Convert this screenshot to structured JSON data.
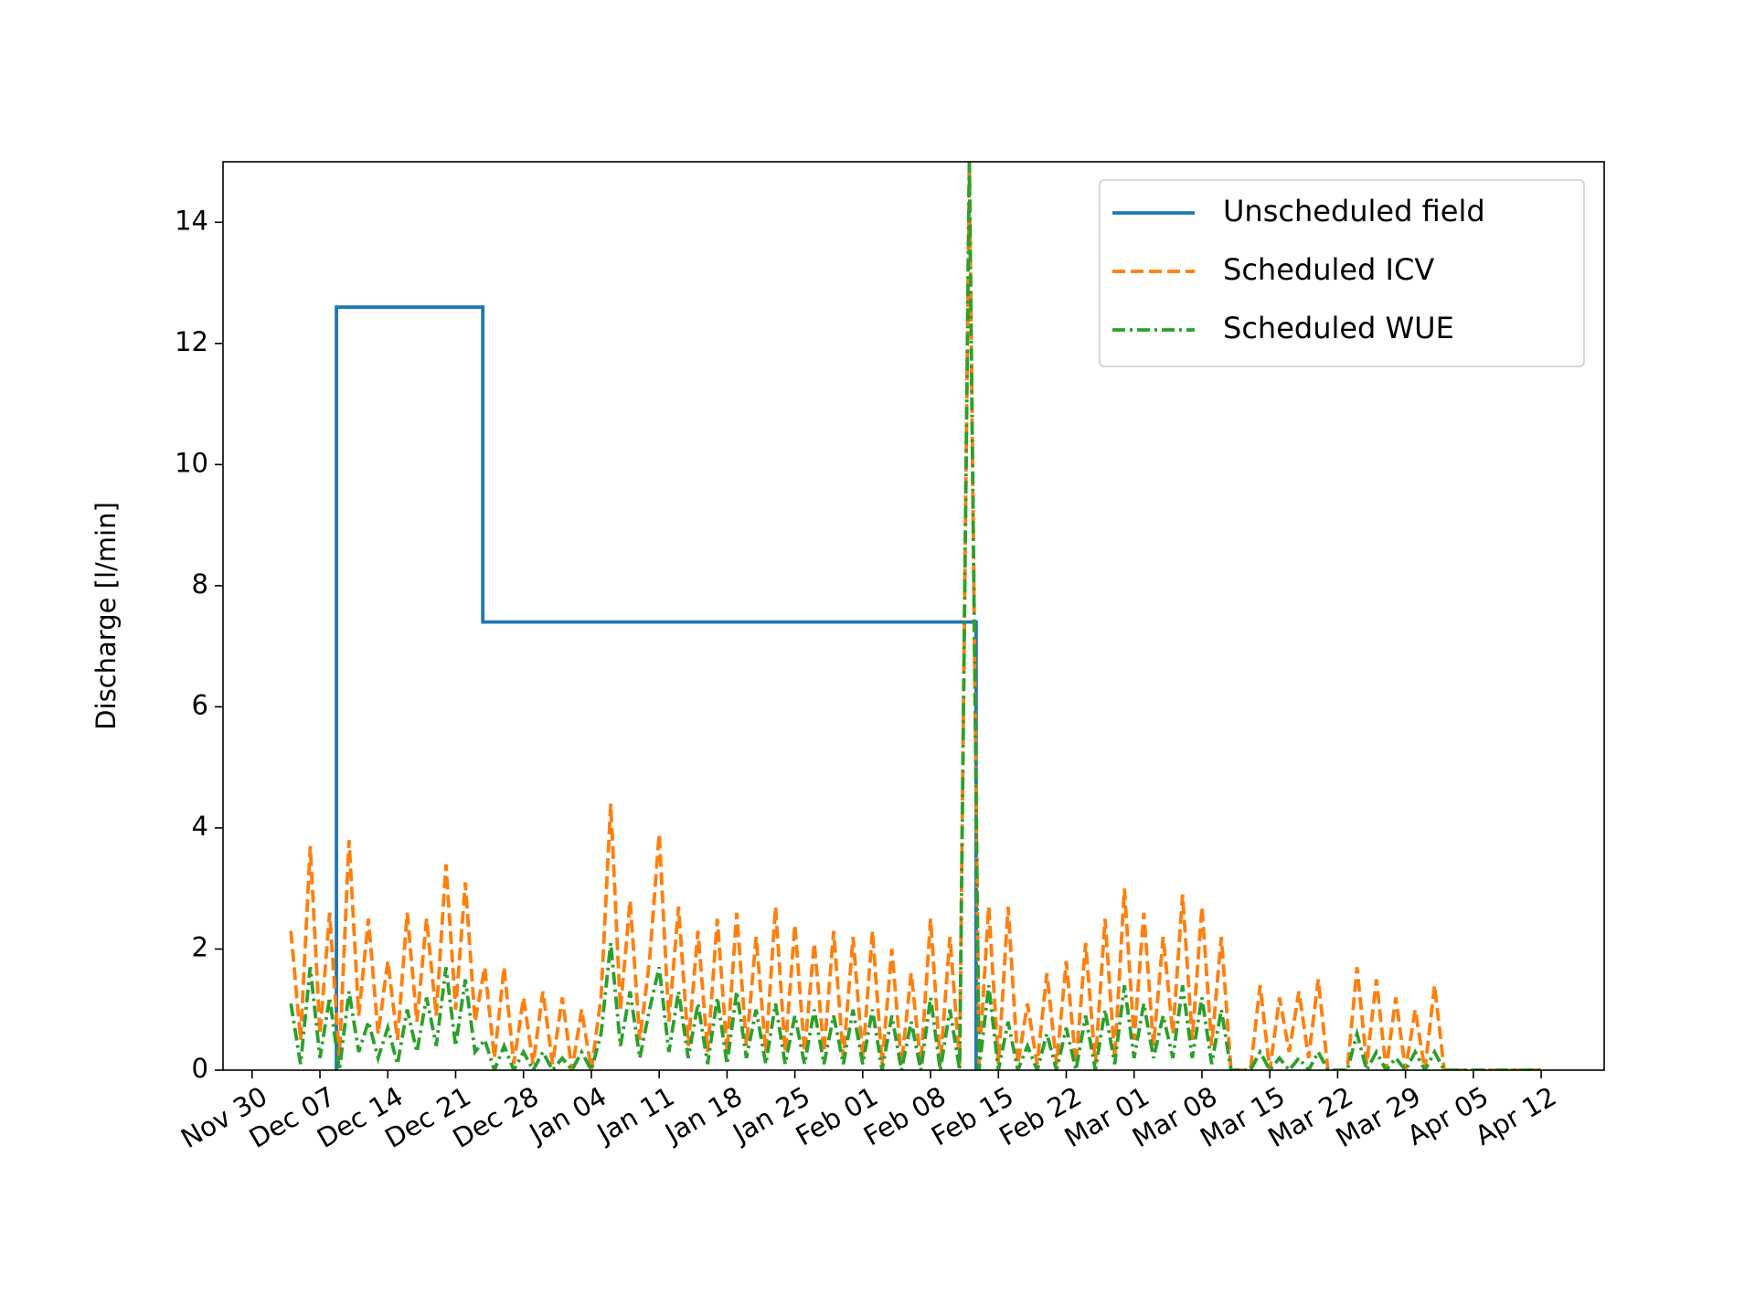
{
  "chart_data": {
    "type": "line",
    "y_label": "Discharge [l/min]",
    "xlim": [
      -3,
      139.5
    ],
    "ylim": [
      0,
      15
    ],
    "xticks": [
      {
        "value": 0,
        "label": "Nov 30"
      },
      {
        "value": 7,
        "label": "Dec 07"
      },
      {
        "value": 14,
        "label": "Dec 14"
      },
      {
        "value": 21,
        "label": "Dec 21"
      },
      {
        "value": 28,
        "label": "Dec 28"
      },
      {
        "value": 35,
        "label": "Jan 04"
      },
      {
        "value": 42,
        "label": "Jan 11"
      },
      {
        "value": 49,
        "label": "Jan 18"
      },
      {
        "value": 56,
        "label": "Jan 25"
      },
      {
        "value": 63,
        "label": "Feb 01"
      },
      {
        "value": 70,
        "label": "Feb 08"
      },
      {
        "value": 77,
        "label": "Feb 15"
      },
      {
        "value": 84,
        "label": "Feb 22"
      },
      {
        "value": 91,
        "label": "Mar 01"
      },
      {
        "value": 98,
        "label": "Mar 08"
      },
      {
        "value": 105,
        "label": "Mar 15"
      },
      {
        "value": 112,
        "label": "Mar 22"
      },
      {
        "value": 119,
        "label": "Mar 29"
      },
      {
        "value": 126,
        "label": "Apr 05"
      },
      {
        "value": 133,
        "label": "Apr 12"
      }
    ],
    "yticks": [
      0,
      2,
      4,
      6,
      8,
      10,
      12,
      14
    ],
    "legend": "upper right",
    "series": [
      {
        "name": "Unscheduled field",
        "color": "#1f77b4",
        "style": "solid",
        "x": [
          8.7,
          8.7,
          23.8,
          23.8,
          74.7,
          74.7
        ],
        "values": [
          0,
          12.6,
          12.6,
          7.4,
          7.4,
          0
        ]
      },
      {
        "name": "Scheduled ICV",
        "color": "#ff7f0e",
        "style": "dashed",
        "x": [
          4,
          5,
          6,
          7,
          8,
          9,
          10,
          11,
          12,
          13,
          14,
          15,
          16,
          17,
          18,
          19,
          20,
          21,
          22,
          23,
          24,
          25,
          26,
          27,
          28,
          29,
          30,
          31,
          32,
          33,
          34,
          35,
          36,
          37,
          38,
          39,
          40,
          41,
          42,
          43,
          44,
          45,
          46,
          47,
          48,
          49,
          50,
          51,
          52,
          53,
          54,
          55,
          56,
          57,
          58,
          59,
          60,
          61,
          62,
          63,
          64,
          65,
          66,
          67,
          68,
          69,
          70,
          71,
          72,
          73,
          74,
          75,
          76,
          77,
          78,
          79,
          80,
          81,
          82,
          83,
          84,
          85,
          86,
          87,
          88,
          89,
          90,
          91,
          92,
          93,
          94,
          95,
          96,
          97,
          98,
          99,
          100,
          101,
          102,
          103,
          104,
          105,
          106,
          107,
          108,
          109,
          110,
          111,
          112,
          113,
          114,
          115,
          116,
          117,
          118,
          119,
          120,
          121,
          122,
          123,
          124,
          125,
          126,
          127,
          128,
          129,
          130,
          131,
          132,
          133
        ],
        "values": [
          2.3,
          0.5,
          3.7,
          0.6,
          2.6,
          0.2,
          3.8,
          0.9,
          2.5,
          0.6,
          1.8,
          0.5,
          2.6,
          0.8,
          2.5,
          0.9,
          3.4,
          1.0,
          3.1,
          0.8,
          1.7,
          0.2,
          1.7,
          0.1,
          1.2,
          0.1,
          1.3,
          0.1,
          1.2,
          0.0,
          1.0,
          0.0,
          1.2,
          4.4,
          1.0,
          2.8,
          0.5,
          1.8,
          3.9,
          0.8,
          2.7,
          0.4,
          2.3,
          0.3,
          2.5,
          0.3,
          2.6,
          0.4,
          2.2,
          0.3,
          2.7,
          0.3,
          2.4,
          0.3,
          2.1,
          0.3,
          2.3,
          0.2,
          2.2,
          0.2,
          2.3,
          0.1,
          2.0,
          0.1,
          1.6,
          0.1,
          2.5,
          0.1,
          2.2,
          0.1,
          15.0,
          0.1,
          2.7,
          0.1,
          2.7,
          0.1,
          1.1,
          0.1,
          1.6,
          0.1,
          1.8,
          0.1,
          2.1,
          0.1,
          2.5,
          0.2,
          3.0,
          0.5,
          2.6,
          0.4,
          2.2,
          0.6,
          2.9,
          0.5,
          2.7,
          0.4,
          2.2,
          0.0,
          0,
          0,
          1.4,
          0.0,
          1.2,
          0.3,
          1.3,
          0.2,
          1.5,
          0.0,
          0,
          0,
          1.7,
          0.1,
          1.5,
          0.0,
          1.2,
          0.0,
          1.0,
          0.0,
          1.4,
          0,
          0,
          0,
          0,
          0,
          0,
          0,
          0,
          0,
          0,
          0
        ]
      },
      {
        "name": "Scheduled WUE",
        "color": "#2ca02c",
        "style": "dashdot",
        "x": [
          4,
          5,
          6,
          7,
          8,
          9,
          10,
          11,
          12,
          13,
          14,
          15,
          16,
          17,
          18,
          19,
          20,
          21,
          22,
          23,
          24,
          25,
          26,
          27,
          28,
          29,
          30,
          31,
          32,
          33,
          34,
          35,
          36,
          37,
          38,
          39,
          40,
          41,
          42,
          43,
          44,
          45,
          46,
          47,
          48,
          49,
          50,
          51,
          52,
          53,
          54,
          55,
          56,
          57,
          58,
          59,
          60,
          61,
          62,
          63,
          64,
          65,
          66,
          67,
          68,
          69,
          70,
          71,
          72,
          73,
          74,
          75,
          76,
          77,
          78,
          79,
          80,
          81,
          82,
          83,
          84,
          85,
          86,
          87,
          88,
          89,
          90,
          91,
          92,
          93,
          94,
          95,
          96,
          97,
          98,
          99,
          100,
          101,
          102,
          103,
          104,
          105,
          106,
          107,
          108,
          109,
          110,
          111,
          112,
          113,
          114,
          115,
          116,
          117,
          118,
          119,
          120,
          121,
          122,
          123,
          124,
          125,
          126,
          127,
          128,
          129,
          130,
          131,
          132,
          133
        ],
        "values": [
          1.1,
          0.1,
          1.7,
          0.2,
          1.2,
          0.0,
          1.3,
          0.3,
          0.8,
          0.2,
          0.7,
          0.1,
          1.0,
          0.3,
          1.2,
          0.4,
          1.7,
          0.4,
          1.5,
          0.3,
          0.5,
          0.0,
          0.4,
          0.0,
          0.3,
          0.0,
          0.3,
          0.0,
          0.2,
          0.0,
          0.3,
          0.0,
          0.6,
          2.1,
          0.4,
          1.3,
          0.2,
          1.0,
          1.7,
          0.3,
          1.3,
          0.2,
          1.1,
          0.1,
          1.2,
          0.1,
          1.3,
          0.2,
          1.0,
          0.1,
          1.1,
          0.1,
          0.9,
          0.1,
          1.0,
          0.1,
          0.9,
          0.1,
          1.0,
          0.1,
          1.0,
          0.0,
          0.9,
          0.0,
          0.8,
          0.0,
          1.2,
          0.0,
          1.0,
          0.0,
          15.0,
          0.0,
          1.4,
          0.0,
          0.8,
          0.0,
          0.4,
          0.0,
          0.6,
          0.0,
          0.7,
          0.0,
          0.9,
          0.0,
          1.0,
          0.1,
          1.4,
          0.2,
          1.1,
          0.2,
          0.9,
          0.2,
          1.4,
          0.2,
          1.2,
          0.1,
          1.0,
          0.0,
          0,
          0,
          0.3,
          0,
          0.2,
          0,
          0.2,
          0,
          0.3,
          0,
          0,
          0,
          0.6,
          0,
          0.3,
          0,
          0.2,
          0,
          0.3,
          0,
          0.3,
          0,
          0,
          0,
          0,
          0,
          0,
          0,
          0,
          0,
          0,
          0
        ]
      }
    ]
  }
}
